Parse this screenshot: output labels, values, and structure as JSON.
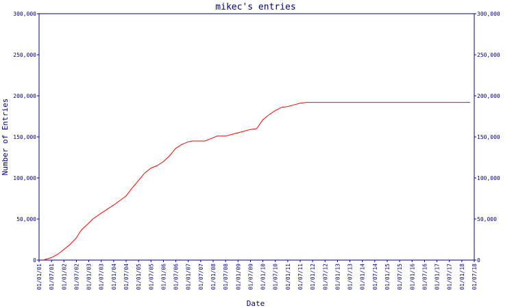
{
  "chart_data": {
    "type": "line",
    "title": "mikec's entries",
    "xlabel": "Date",
    "ylabel": "Number of Entries",
    "ylim": [
      0,
      300000
    ],
    "yticks": [
      "0",
      "50,000",
      "100,000",
      "150,000",
      "200,000",
      "250,000",
      "300,000"
    ],
    "ytick_values": [
      0,
      50000,
      100000,
      150000,
      200000,
      250000,
      300000
    ],
    "xticks": [
      "01/01/01",
      "01/07/01",
      "01/01/02",
      "01/07/02",
      "01/01/03",
      "01/07/03",
      "01/01/04",
      "01/07/04",
      "01/01/05",
      "01/07/05",
      "01/01/06",
      "01/07/06",
      "01/01/07",
      "01/07/07",
      "01/01/08",
      "01/07/08",
      "01/01/09",
      "01/07/09",
      "01/01/10",
      "01/07/10",
      "01/01/11",
      "01/07/11",
      "01/01/12",
      "01/07/12",
      "01/01/13",
      "01/07/13",
      "01/01/14",
      "01/07/14",
      "01/01/15",
      "01/07/15",
      "01/01/16",
      "01/07/16",
      "01/01/17",
      "01/07/17",
      "01/01/18",
      "01/07/18"
    ],
    "line_color": "#ff0000",
    "axis_color": "#000080",
    "grid": false,
    "series": [
      {
        "x": [
          "2001-03-01",
          "2001-07-01",
          "2001-10-01",
          "2002-01-01",
          "2002-04-01",
          "2002-07-01",
          "2002-09-01",
          "2002-10-01",
          "2003-01-01",
          "2003-03-01",
          "2003-07-01",
          "2004-01-01",
          "2004-07-01",
          "2004-10-01",
          "2005-01-01",
          "2005-04-01",
          "2005-07-01",
          "2005-10-01",
          "2006-01-01",
          "2006-04-01",
          "2006-07-01",
          "2006-10-01",
          "2007-01-01",
          "2007-03-01",
          "2007-07-01",
          "2007-09-01",
          "2008-01-01",
          "2008-03-01",
          "2008-07-01",
          "2008-10-01",
          "2009-01-01",
          "2009-04-01",
          "2009-07-01",
          "2009-10-01",
          "2010-01-01",
          "2010-04-01",
          "2010-07-01",
          "2010-10-01",
          "2011-01-01",
          "2011-04-01",
          "2011-07-01",
          "2011-10-01",
          "2012-01-01",
          "2013-01-01",
          "2014-01-01",
          "2015-01-01",
          "2016-01-01",
          "2017-01-01",
          "2018-01-01",
          "2018-05-01"
        ],
        "y": [
          0,
          3000,
          7000,
          13000,
          19000,
          27000,
          35000,
          38000,
          45000,
          50000,
          57000,
          67000,
          78000,
          88000,
          97000,
          106000,
          112000,
          115000,
          120000,
          127000,
          136000,
          141000,
          144000,
          145000,
          145000,
          145000,
          149000,
          151000,
          151000,
          153000,
          155000,
          157000,
          159000,
          160000,
          171000,
          177000,
          182000,
          186000,
          187000,
          189000,
          191000,
          192000,
          192000,
          192000,
          192000,
          192000,
          192000,
          192000,
          192000,
          192000
        ]
      }
    ]
  }
}
